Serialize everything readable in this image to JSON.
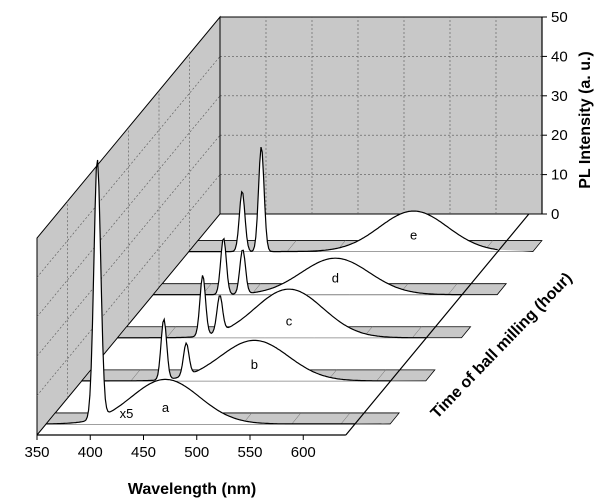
{
  "chart_data": {
    "type": "line",
    "style": "3d-waterfall",
    "xlabel": "Wavelength (nm)",
    "ylabel": "Time of ball milling (hour)",
    "zlabel": "PL Intensity (a. u.)",
    "xlim": [
      350,
      640
    ],
    "zlim": [
      0,
      50
    ],
    "x_ticks": [
      350,
      400,
      450,
      500,
      550,
      600
    ],
    "z_ticks": [
      0,
      10,
      20,
      30,
      40,
      50
    ],
    "grid": true,
    "colors": {
      "wall": "#c8c8c8",
      "panel": "#c8c8c8",
      "curve_fill": "#ffffff",
      "line": "#000000"
    },
    "multiplier_note": "x5",
    "series": [
      {
        "name": "a",
        "peaks": [
          [
            398,
            64
          ],
          [
            462,
            11
          ]
        ]
      },
      {
        "name": "b",
        "peaks": [
          [
            427,
            15
          ],
          [
            448,
            8
          ],
          [
            512,
            10
          ]
        ]
      },
      {
        "name": "c",
        "peaks": [
          [
            430,
            15
          ],
          [
            446,
            9
          ],
          [
            511,
            12
          ]
        ]
      },
      {
        "name": "d",
        "peaks": [
          [
            416,
            14
          ],
          [
            434,
            11
          ],
          [
            521,
            9
          ]
        ]
      },
      {
        "name": "e",
        "peaks": [
          [
            400,
            15
          ],
          [
            418,
            26
          ],
          [
            561,
            10
          ]
        ]
      }
    ]
  }
}
